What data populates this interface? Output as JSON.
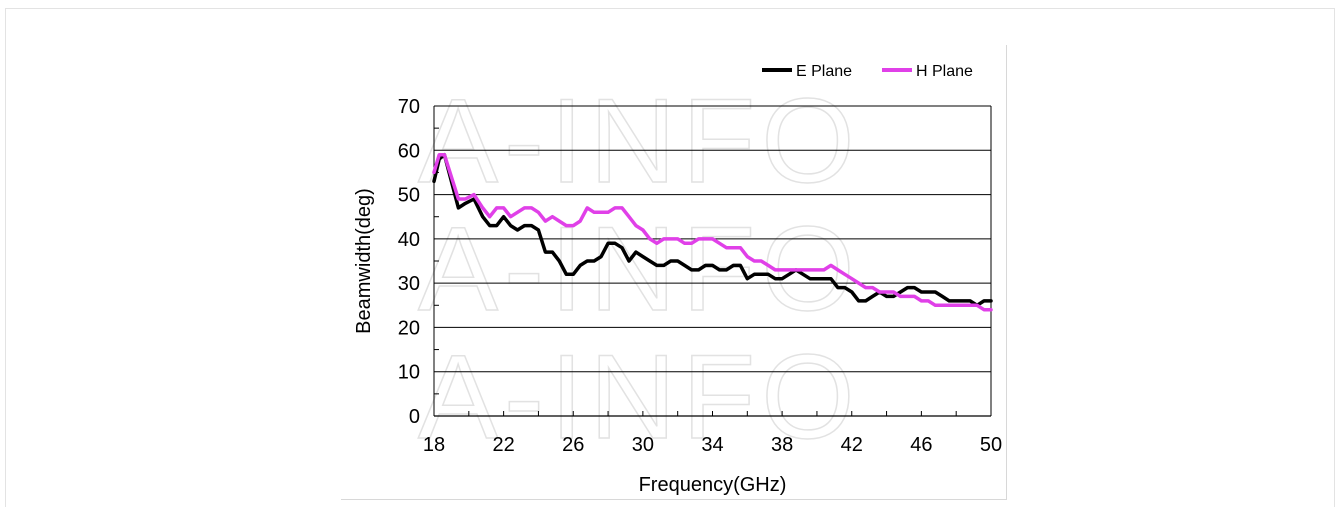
{
  "watermark": "A-INFO",
  "chart_data": {
    "type": "line",
    "title": "",
    "xlabel": "Frequency(GHz)",
    "ylabel": "Beamwidth(deg)",
    "xlim": [
      18,
      50
    ],
    "ylim": [
      0,
      70
    ],
    "xticks": [
      18,
      22,
      26,
      30,
      34,
      38,
      42,
      46,
      50
    ],
    "yticks": [
      0,
      10,
      20,
      30,
      40,
      50,
      60,
      70
    ],
    "grid": "horizontal",
    "legend_position": "top-right",
    "series": [
      {
        "name": "E Plane",
        "color": "#000000",
        "x": [
          18,
          18.3,
          18.6,
          19.0,
          19.4,
          19.8,
          20.3,
          20.8,
          21.2,
          21.6,
          22.0,
          22.4,
          22.8,
          23.2,
          23.6,
          24.0,
          24.4,
          24.8,
          25.2,
          25.6,
          26.0,
          26.4,
          26.8,
          27.2,
          27.6,
          28.0,
          28.4,
          28.8,
          29.2,
          29.6,
          30.0,
          30.4,
          30.8,
          31.2,
          31.6,
          32.0,
          32.4,
          32.8,
          33.2,
          33.6,
          34.0,
          34.4,
          34.8,
          35.2,
          35.6,
          36.0,
          36.4,
          36.8,
          37.2,
          37.6,
          38.0,
          38.4,
          38.8,
          39.2,
          39.6,
          40.0,
          40.4,
          40.8,
          41.2,
          41.6,
          42.0,
          42.4,
          42.8,
          43.2,
          43.6,
          44.0,
          44.4,
          44.8,
          45.2,
          45.6,
          46.0,
          46.4,
          46.8,
          47.2,
          47.6,
          48.0,
          48.4,
          48.8,
          49.2,
          49.6,
          50.0
        ],
        "values": [
          53,
          58,
          59,
          53,
          47,
          48,
          49,
          45,
          43,
          43,
          45,
          43,
          42,
          43,
          43,
          42,
          37,
          37,
          35,
          32,
          32,
          34,
          35,
          35,
          36,
          39,
          39,
          38,
          35,
          37,
          36,
          35,
          34,
          34,
          35,
          35,
          34,
          33,
          33,
          34,
          34,
          33,
          33,
          34,
          34,
          31,
          32,
          32,
          32,
          31,
          31,
          32,
          33,
          32,
          31,
          31,
          31,
          31,
          29,
          29,
          28,
          26,
          26,
          27,
          28,
          27,
          27,
          28,
          29,
          29,
          28,
          28,
          28,
          27,
          26,
          26,
          26,
          26,
          25,
          26,
          26
        ]
      },
      {
        "name": "H Plane",
        "color": "#e040e8",
        "x": [
          18,
          18.3,
          18.6,
          19.0,
          19.4,
          19.8,
          20.3,
          20.8,
          21.2,
          21.6,
          22.0,
          22.4,
          22.8,
          23.2,
          23.6,
          24.0,
          24.4,
          24.8,
          25.2,
          25.6,
          26.0,
          26.4,
          26.8,
          27.2,
          27.6,
          28.0,
          28.4,
          28.8,
          29.2,
          29.6,
          30.0,
          30.4,
          30.8,
          31.2,
          31.6,
          32.0,
          32.4,
          32.8,
          33.2,
          33.6,
          34.0,
          34.4,
          34.8,
          35.2,
          35.6,
          36.0,
          36.4,
          36.8,
          37.2,
          37.6,
          38.0,
          38.4,
          38.8,
          39.2,
          39.6,
          40.0,
          40.4,
          40.8,
          41.2,
          41.6,
          42.0,
          42.4,
          42.8,
          43.2,
          43.6,
          44.0,
          44.4,
          44.8,
          45.2,
          45.6,
          46.0,
          46.4,
          46.8,
          47.2,
          47.6,
          48.0,
          48.4,
          48.8,
          49.2,
          49.6,
          50.0
        ],
        "values": [
          55,
          59,
          59,
          54,
          49,
          49,
          50,
          47,
          45,
          47,
          47,
          45,
          46,
          47,
          47,
          46,
          44,
          45,
          44,
          43,
          43,
          44,
          47,
          46,
          46,
          46,
          47,
          47,
          45,
          43,
          42,
          40,
          39,
          40,
          40,
          40,
          39,
          39,
          40,
          40,
          40,
          39,
          38,
          38,
          38,
          36,
          35,
          35,
          34,
          33,
          33,
          33,
          33,
          33,
          33,
          33,
          33,
          34,
          33,
          32,
          31,
          30,
          29,
          29,
          28,
          28,
          28,
          27,
          27,
          27,
          26,
          26,
          25,
          25,
          25,
          25,
          25,
          25,
          25,
          24,
          24
        ]
      }
    ]
  }
}
